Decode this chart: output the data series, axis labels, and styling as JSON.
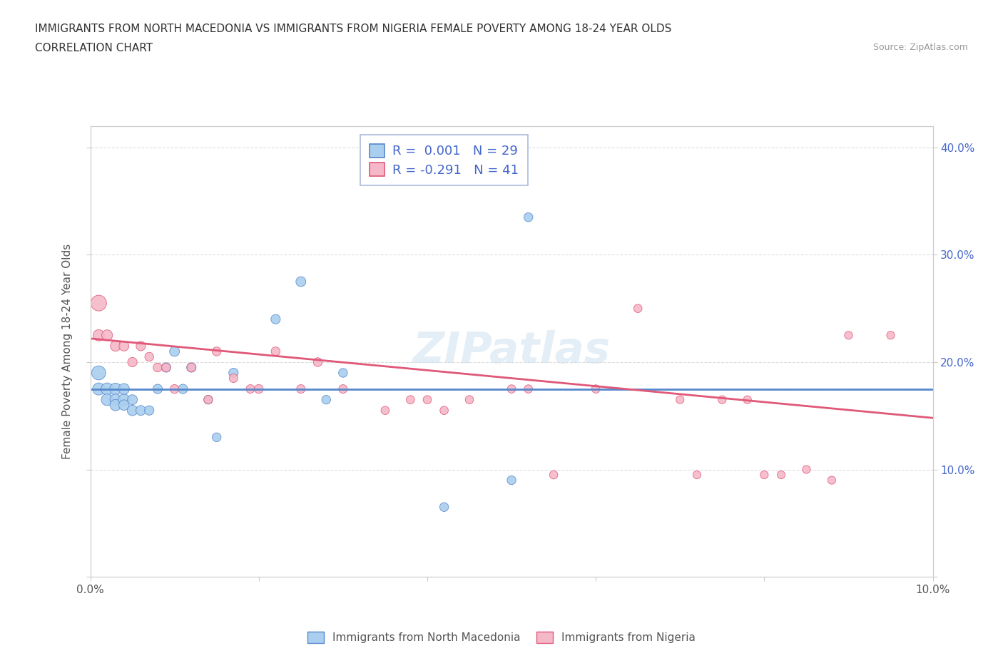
{
  "title_line1": "IMMIGRANTS FROM NORTH MACEDONIA VS IMMIGRANTS FROM NIGERIA FEMALE POVERTY AMONG 18-24 YEAR OLDS",
  "title_line2": "CORRELATION CHART",
  "source": "Source: ZipAtlas.com",
  "ylabel": "Female Poverty Among 18-24 Year Olds",
  "xlim": [
    0.0,
    0.1
  ],
  "ylim": [
    0.0,
    0.42
  ],
  "xticks": [
    0.0,
    0.02,
    0.04,
    0.06,
    0.08,
    0.1
  ],
  "yticks": [
    0.0,
    0.1,
    0.2,
    0.3,
    0.4
  ],
  "color_blue": "#aacfee",
  "color_pink": "#f5b8c8",
  "line_blue": "#5588cc",
  "line_pink": "#e05878",
  "legend_text_color": "#4466cc",
  "R_blue": 0.001,
  "N_blue": 29,
  "R_pink": -0.291,
  "N_pink": 41,
  "blue_trend_y0": 0.175,
  "blue_trend_y1": 0.175,
  "pink_trend_y0": 0.222,
  "pink_trend_y1": 0.148,
  "dashed_line_y": 0.175,
  "blue_x": [
    0.001,
    0.001,
    0.002,
    0.002,
    0.003,
    0.003,
    0.003,
    0.004,
    0.004,
    0.004,
    0.005,
    0.005,
    0.006,
    0.007,
    0.008,
    0.009,
    0.01,
    0.011,
    0.012,
    0.014,
    0.015,
    0.017,
    0.022,
    0.025,
    0.028,
    0.03,
    0.042,
    0.05,
    0.052
  ],
  "blue_y": [
    0.19,
    0.175,
    0.175,
    0.165,
    0.175,
    0.165,
    0.16,
    0.165,
    0.175,
    0.16,
    0.155,
    0.165,
    0.155,
    0.155,
    0.175,
    0.195,
    0.21,
    0.175,
    0.195,
    0.165,
    0.13,
    0.19,
    0.24,
    0.275,
    0.165,
    0.19,
    0.065,
    0.09,
    0.335
  ],
  "blue_sizes": [
    200,
    150,
    150,
    140,
    140,
    130,
    130,
    130,
    120,
    110,
    110,
    100,
    100,
    90,
    90,
    90,
    100,
    90,
    90,
    80,
    80,
    90,
    90,
    100,
    80,
    80,
    80,
    80,
    80
  ],
  "pink_x": [
    0.001,
    0.001,
    0.002,
    0.003,
    0.004,
    0.005,
    0.006,
    0.007,
    0.008,
    0.009,
    0.01,
    0.012,
    0.014,
    0.015,
    0.017,
    0.019,
    0.02,
    0.022,
    0.025,
    0.027,
    0.03,
    0.035,
    0.038,
    0.04,
    0.042,
    0.045,
    0.05,
    0.052,
    0.055,
    0.06,
    0.065,
    0.07,
    0.072,
    0.075,
    0.078,
    0.08,
    0.082,
    0.085,
    0.088,
    0.09,
    0.095
  ],
  "pink_y": [
    0.255,
    0.225,
    0.225,
    0.215,
    0.215,
    0.2,
    0.215,
    0.205,
    0.195,
    0.195,
    0.175,
    0.195,
    0.165,
    0.21,
    0.185,
    0.175,
    0.175,
    0.21,
    0.175,
    0.2,
    0.175,
    0.155,
    0.165,
    0.165,
    0.155,
    0.165,
    0.175,
    0.175,
    0.095,
    0.175,
    0.25,
    0.165,
    0.095,
    0.165,
    0.165,
    0.095,
    0.095,
    0.1,
    0.09,
    0.225,
    0.225
  ],
  "pink_sizes": [
    250,
    130,
    120,
    110,
    100,
    90,
    90,
    80,
    80,
    80,
    80,
    80,
    75,
    80,
    75,
    75,
    80,
    80,
    75,
    80,
    75,
    70,
    70,
    70,
    70,
    70,
    70,
    70,
    70,
    70,
    70,
    65,
    65,
    65,
    65,
    65,
    65,
    65,
    65,
    65,
    65
  ]
}
